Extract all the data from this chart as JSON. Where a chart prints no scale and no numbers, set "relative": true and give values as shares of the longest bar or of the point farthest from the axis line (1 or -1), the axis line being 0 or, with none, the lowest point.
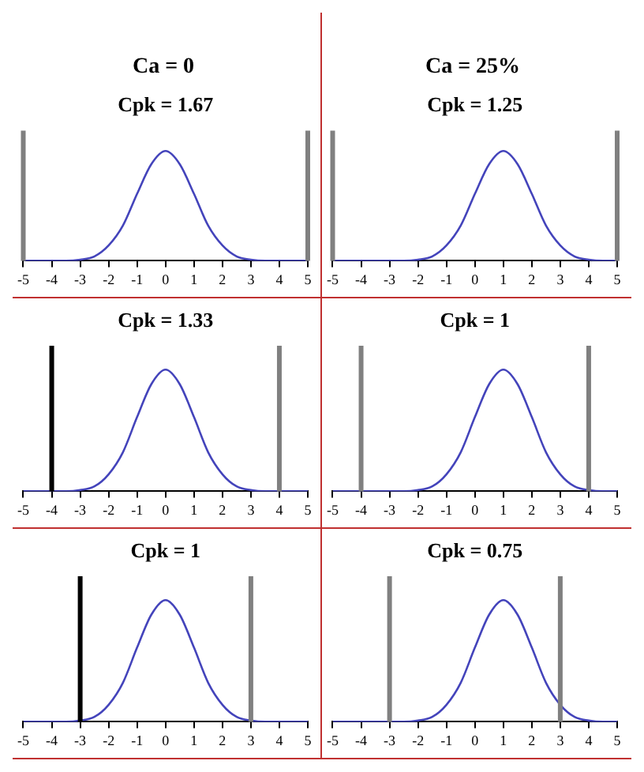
{
  "chart_data": [
    {
      "type": "line",
      "title": "Ca = 0",
      "x": [
        -5,
        -4.5,
        -4,
        -3.5,
        -3,
        -2.5,
        -2,
        -1.5,
        -1,
        -0.5,
        0,
        0.5,
        1,
        1.5,
        2,
        2.5,
        3,
        3.5,
        4,
        4.5,
        5
      ],
      "relative": true,
      "marker": "none",
      "legend": false,
      "grid": false,
      "xlim": [
        -5,
        5
      ],
      "xticks": [
        -5,
        -4,
        -3,
        -2,
        -1,
        0,
        1,
        2,
        3,
        4,
        5
      ],
      "series": [
        {
          "color": "#4444bb",
          "values": [
            0,
            0,
            0,
            0,
            0.01,
            0.04,
            0.14,
            0.32,
            0.61,
            0.88,
            1,
            0.88,
            0.61,
            0.32,
            0.14,
            0.04,
            0.01,
            0,
            0,
            0,
            0
          ]
        }
      ],
      "ref_lines": [
        {
          "axis": "x",
          "value": -5,
          "color": "#808080"
        },
        {
          "axis": "x",
          "value": 5,
          "color": "#808080"
        }
      ],
      "annotations": [
        "Cpk = 1.67"
      ]
    },
    {
      "type": "line",
      "title": "Ca = 25%",
      "x": [
        -5,
        -4.5,
        -4,
        -3.5,
        -3,
        -2.5,
        -2,
        -1.5,
        -1,
        -0.5,
        0,
        0.5,
        1,
        1.5,
        2,
        2.5,
        3,
        3.5,
        4,
        4.5,
        5
      ],
      "relative": true,
      "marker": "none",
      "legend": false,
      "grid": false,
      "xlim": [
        -5,
        5
      ],
      "xticks": [
        -5,
        -4,
        -3,
        -2,
        -1,
        0,
        1,
        2,
        3,
        4,
        5
      ],
      "series": [
        {
          "color": "#4444bb",
          "values": [
            0,
            0,
            0,
            0,
            0,
            0,
            0.01,
            0.04,
            0.14,
            0.32,
            0.61,
            0.88,
            1,
            0.88,
            0.61,
            0.32,
            0.14,
            0.04,
            0.01,
            0,
            0
          ]
        }
      ],
      "ref_lines": [
        {
          "axis": "x",
          "value": -5,
          "color": "#808080"
        },
        {
          "axis": "x",
          "value": 5,
          "color": "#808080"
        }
      ],
      "annotations": [
        "Cpk = 1.25"
      ]
    },
    {
      "type": "line",
      "x": [
        -5,
        -4.5,
        -4,
        -3.5,
        -3,
        -2.5,
        -2,
        -1.5,
        -1,
        -0.5,
        0,
        0.5,
        1,
        1.5,
        2,
        2.5,
        3,
        3.5,
        4,
        4.5,
        5
      ],
      "relative": true,
      "marker": "none",
      "legend": false,
      "grid": false,
      "xlim": [
        -5,
        5
      ],
      "xticks": [
        -5,
        -4,
        -3,
        -2,
        -1,
        0,
        1,
        2,
        3,
        4,
        5
      ],
      "series": [
        {
          "color": "#4444bb",
          "values": [
            0,
            0,
            0,
            0,
            0.01,
            0.04,
            0.14,
            0.32,
            0.61,
            0.88,
            1,
            0.88,
            0.61,
            0.32,
            0.14,
            0.04,
            0.01,
            0,
            0,
            0,
            0
          ]
        }
      ],
      "ref_lines": [
        {
          "axis": "x",
          "value": -4,
          "color": "#000000"
        },
        {
          "axis": "x",
          "value": 4,
          "color": "#808080"
        }
      ],
      "annotations": [
        "Cpk = 1.33"
      ]
    },
    {
      "type": "line",
      "x": [
        -5,
        -4.5,
        -4,
        -3.5,
        -3,
        -2.5,
        -2,
        -1.5,
        -1,
        -0.5,
        0,
        0.5,
        1,
        1.5,
        2,
        2.5,
        3,
        3.5,
        4,
        4.5,
        5
      ],
      "relative": true,
      "marker": "none",
      "legend": false,
      "grid": false,
      "xlim": [
        -5,
        5
      ],
      "xticks": [
        -5,
        -4,
        -3,
        -2,
        -1,
        0,
        1,
        2,
        3,
        4,
        5
      ],
      "series": [
        {
          "color": "#4444bb",
          "values": [
            0,
            0,
            0,
            0,
            0,
            0,
            0.01,
            0.04,
            0.14,
            0.32,
            0.61,
            0.88,
            1,
            0.88,
            0.61,
            0.32,
            0.14,
            0.04,
            0.01,
            0,
            0
          ]
        }
      ],
      "ref_lines": [
        {
          "axis": "x",
          "value": -4,
          "color": "#808080"
        },
        {
          "axis": "x",
          "value": 4,
          "color": "#808080"
        }
      ],
      "annotations": [
        "Cpk = 1"
      ]
    },
    {
      "type": "line",
      "x": [
        -5,
        -4.5,
        -4,
        -3.5,
        -3,
        -2.5,
        -2,
        -1.5,
        -1,
        -0.5,
        0,
        0.5,
        1,
        1.5,
        2,
        2.5,
        3,
        3.5,
        4,
        4.5,
        5
      ],
      "relative": true,
      "marker": "none",
      "legend": false,
      "grid": false,
      "xlim": [
        -5,
        5
      ],
      "xticks": [
        -5,
        -4,
        -3,
        -2,
        -1,
        0,
        1,
        2,
        3,
        4,
        5
      ],
      "series": [
        {
          "color": "#4444bb",
          "values": [
            0,
            0,
            0,
            0,
            0.01,
            0.04,
            0.14,
            0.32,
            0.61,
            0.88,
            1,
            0.88,
            0.61,
            0.32,
            0.14,
            0.04,
            0.01,
            0,
            0,
            0,
            0
          ]
        }
      ],
      "ref_lines": [
        {
          "axis": "x",
          "value": -3,
          "color": "#000000"
        },
        {
          "axis": "x",
          "value": 3,
          "color": "#808080"
        }
      ],
      "annotations": [
        "Cpk = 1"
      ]
    },
    {
      "type": "line",
      "x": [
        -5,
        -4.5,
        -4,
        -3.5,
        -3,
        -2.5,
        -2,
        -1.5,
        -1,
        -0.5,
        0,
        0.5,
        1,
        1.5,
        2,
        2.5,
        3,
        3.5,
        4,
        4.5,
        5
      ],
      "relative": true,
      "marker": "none",
      "legend": false,
      "grid": false,
      "xlim": [
        -5,
        5
      ],
      "xticks": [
        -5,
        -4,
        -3,
        -2,
        -1,
        0,
        1,
        2,
        3,
        4,
        5
      ],
      "series": [
        {
          "color": "#4444bb",
          "values": [
            0,
            0,
            0,
            0,
            0,
            0,
            0.01,
            0.04,
            0.14,
            0.32,
            0.61,
            0.88,
            1,
            0.88,
            0.61,
            0.32,
            0.14,
            0.04,
            0.01,
            0,
            0
          ]
        }
      ],
      "ref_lines": [
        {
          "axis": "x",
          "value": -3,
          "color": "#808080"
        },
        {
          "axis": "x",
          "value": 3,
          "color": "#808080"
        }
      ],
      "annotations": [
        "Cpk = 0.75"
      ]
    }
  ]
}
